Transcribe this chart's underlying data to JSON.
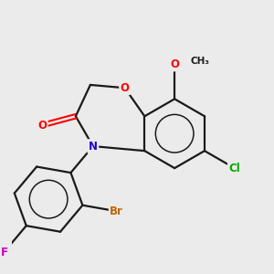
{
  "background_color": "#ebebeb",
  "bond_color": "#1a1a1a",
  "atom_colors": {
    "O": "#ff0000",
    "N": "#2200cc",
    "Br": "#bb6600",
    "Cl": "#00aa00",
    "F": "#cc00bb"
  },
  "figsize": [
    3.0,
    3.0
  ],
  "dpi": 100
}
